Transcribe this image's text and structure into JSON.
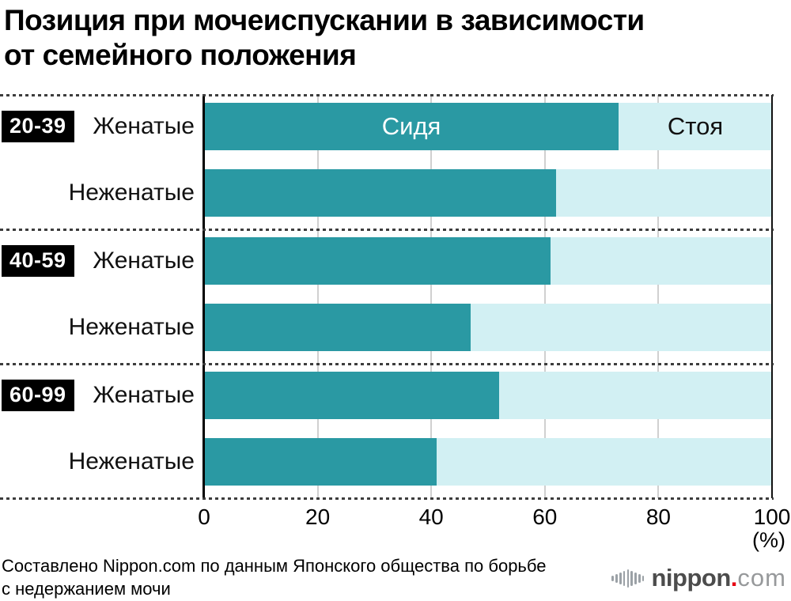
{
  "title": {
    "line1": "Позиция при мочеиспускании в зависимости",
    "line2": "от семейного положения"
  },
  "chart_data": {
    "type": "bar",
    "subtype": "stacked-100-horizontal",
    "unit_label": "(%)",
    "xlim": [
      0,
      100
    ],
    "x_ticks": [
      "0",
      "20",
      "40",
      "60",
      "80",
      "100"
    ],
    "x_tick_values": [
      0,
      20,
      40,
      60,
      80,
      100
    ],
    "grid": "vertical-light-gray",
    "series_labels": {
      "sitting": "Сидя",
      "standing": "Стоя"
    },
    "colors": {
      "sitting": "#2a99a3",
      "standing": "#d2f0f3"
    },
    "groups": [
      {
        "age": "20-39",
        "rows": [
          {
            "label": "Женатые",
            "sitting": 73,
            "standing": 27
          },
          {
            "label": "Неженатые",
            "sitting": 62,
            "standing": 38
          }
        ]
      },
      {
        "age": "40-59",
        "rows": [
          {
            "label": "Женатые",
            "sitting": 61,
            "standing": 39
          },
          {
            "label": "Неженатые",
            "sitting": 47,
            "standing": 53
          }
        ]
      },
      {
        "age": "60-99",
        "rows": [
          {
            "label": "Женатые",
            "sitting": 52,
            "standing": 48
          },
          {
            "label": "Неженатые",
            "sitting": 41,
            "standing": 59
          }
        ]
      }
    ]
  },
  "axis": {
    "percent_label": "(%)"
  },
  "source": {
    "line1": "Составлено Nippon.com по данным Японского общества по борьбе",
    "line2": "с недержанием мочи"
  },
  "logo": {
    "icon": "waveform-icon",
    "name": "nippon",
    "dot": ".",
    "suffix": "com"
  }
}
